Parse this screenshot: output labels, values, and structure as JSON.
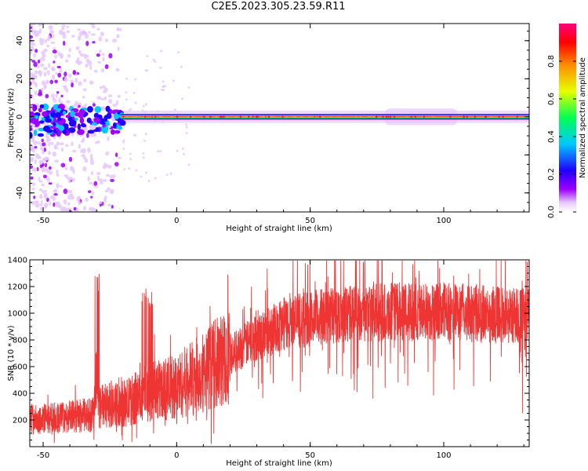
{
  "title": "C2E5.2023.305.23.59.R11",
  "chart_data": [
    {
      "type": "heatmap",
      "xlabel": "Height of straight line (km)",
      "ylabel": "Frequency (Hz)",
      "xlim": [
        -55,
        132
      ],
      "ylim": [
        -50,
        49
      ],
      "xticks": [
        -50,
        0,
        50,
        100
      ],
      "yticks": [
        -40,
        -20,
        0,
        20,
        40
      ],
      "description_values": {
        "main_band_center_hz": 0,
        "band_half_width_hz": 2,
        "scattered_noise_range_km": [
          -55,
          -20
        ],
        "wider_glow_range_km": [
          78,
          105
        ]
      },
      "colorbar": {
        "label": "Normalized spectral amplitude",
        "range": [
          0.0,
          1.0
        ],
        "ticks": [
          "0.0",
          "0.2",
          "0.4",
          "0.6",
          "0.8"
        ],
        "colormap": [
          "#ffffff",
          "#e6c8ff",
          "#9d00ff",
          "#2000ff",
          "#00c8ff",
          "#00ff50",
          "#e6ff00",
          "#ff8c00",
          "#ff0000",
          "#ff0080"
        ]
      }
    },
    {
      "type": "line",
      "xlabel": "Height of straight line (km)",
      "ylabel": "SNR (10 * v/v)",
      "xlim": [
        -55,
        132
      ],
      "ylim": [
        0,
        1400
      ],
      "xticks": [
        -50,
        0,
        50,
        100
      ],
      "yticks": [
        200,
        400,
        600,
        800,
        1000,
        1200,
        1400
      ],
      "series": [
        {
          "color": "#ef3434",
          "trend_x": [
            -55,
            -31,
            -30,
            -29,
            -20,
            -10,
            0,
            10,
            20,
            30,
            40,
            50,
            60,
            70,
            80,
            90,
            100,
            110,
            120,
            132
          ],
          "trend_y": [
            200,
            240,
            620,
            300,
            320,
            410,
            450,
            560,
            690,
            820,
            920,
            960,
            990,
            1000,
            1010,
            1010,
            1010,
            1000,
            990,
            980
          ]
        }
      ]
    }
  ]
}
